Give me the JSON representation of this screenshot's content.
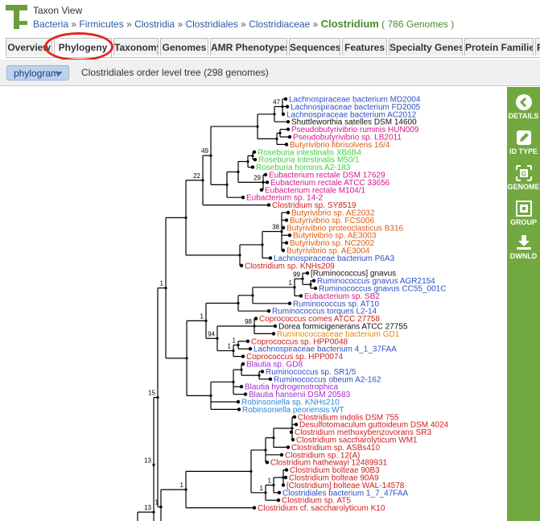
{
  "header": {
    "view_title": "Taxon View",
    "breadcrumb": [
      "Bacteria",
      "Firmicutes",
      "Clostridia",
      "Clostridiales",
      "Clostridiaceae"
    ],
    "current": "Clostridium",
    "genome_count": "( 786 Genomes )"
  },
  "tabs": [
    {
      "label": "Overview",
      "active": false
    },
    {
      "label": "Phylogeny",
      "active": true
    },
    {
      "label": "Taxonomy",
      "active": false
    },
    {
      "label": "Genomes",
      "active": false
    },
    {
      "label": "AMR Phenotypes",
      "active": false
    },
    {
      "label": "Sequences",
      "active": false
    },
    {
      "label": "Features",
      "active": false
    },
    {
      "label": "Specialty Genes",
      "active": false
    },
    {
      "label": "Protein Families",
      "active": false
    },
    {
      "label": "P",
      "active": false
    }
  ],
  "toolbar": {
    "view_select": "phylogram",
    "tree_title": "Clostridiales order level tree (298 genomes)"
  },
  "tree": {
    "leaves": [
      {
        "name": "Lachnospiraceae bacterium MD2004",
        "color": "#2f4fc4"
      },
      {
        "name": "Lachnospiraceae bacterium FD2005",
        "color": "#2f4fc4"
      },
      {
        "name": "Lachnospiraceae bacterium AC2012",
        "color": "#2f4fc4"
      },
      {
        "name": "Shuttleworthia satelles DSM 14600",
        "color": "#111111"
      },
      {
        "name": "Pseudobutyrivibrio ruminis HUN009",
        "color": "#d4168c"
      },
      {
        "name": "Pseudobutyrivibrio sp. LB2011",
        "color": "#d4168c"
      },
      {
        "name": "Butyrivibrio fibrisolvens 16/4",
        "color": "#e05a12"
      },
      {
        "name": "Roseburia intestinalis XB6B4",
        "color": "#3ecf3e"
      },
      {
        "name": "Roseburia intestinalis M50/1",
        "color": "#3ecf3e"
      },
      {
        "name": "Roseburia hominis A2-183",
        "color": "#3ecf3e"
      },
      {
        "name": "Eubacterium rectale DSM 17629",
        "color": "#d4168c"
      },
      {
        "name": "Eubacterium rectale ATCC 33656",
        "color": "#d4168c"
      },
      {
        "name": "Eubacterium rectale M104/1",
        "color": "#d4168c"
      },
      {
        "name": "Eubacterium sp. 14-2",
        "color": "#d4168c"
      },
      {
        "name": "Clostridium sp. SY8519",
        "color": "#d01c1c"
      },
      {
        "name": "Butyrivibrio sp. AE2032",
        "color": "#e05a12"
      },
      {
        "name": "Butyrivibrio sp. FCS006",
        "color": "#e05a12"
      },
      {
        "name": "Butyrivibrio proteoclasticus B316",
        "color": "#e05a12"
      },
      {
        "name": "Butyrivibrio sp. AE3003",
        "color": "#e05a12"
      },
      {
        "name": "Butyrivibrio sp. NC2002",
        "color": "#e05a12"
      },
      {
        "name": "Butyrivibrio sp. AE3004",
        "color": "#e05a12"
      },
      {
        "name": "Lachnospiraceae bacterium P6A3",
        "color": "#2f4fc4"
      },
      {
        "name": "Clostridium sp. KNHs209",
        "color": "#d01c1c"
      },
      {
        "name": "[Ruminococcus] gnavus",
        "color": "#111111"
      },
      {
        "name": "Ruminococcus gnavus AGR2154",
        "color": "#2f4fc4"
      },
      {
        "name": "Ruminococcus gnavus CC55_001C",
        "color": "#2f4fc4"
      },
      {
        "name": "Eubacterium sp. SB2",
        "color": "#d4168c"
      },
      {
        "name": "Ruminococcus sp. AT10",
        "color": "#2f4fc4"
      },
      {
        "name": "Ruminococcus torques L2-14",
        "color": "#2f4fc4"
      },
      {
        "name": "Coprococcus comes ATCC 27758",
        "color": "#d01c1c"
      },
      {
        "name": "Dorea formicigenerans ATCC 27755",
        "color": "#111111"
      },
      {
        "name": "Ruminococcaceae bacterium GD1",
        "color": "#e08a10"
      },
      {
        "name": "Coprococcus sp. HPP0048",
        "color": "#d01c1c"
      },
      {
        "name": "Lachnospiraceae bacterium 4_1_37FAA",
        "color": "#2f4fc4"
      },
      {
        "name": "Coprococcus sp. HPP0074",
        "color": "#d01c1c"
      },
      {
        "name": "Blautia sp. GD8",
        "color": "#a22ad0"
      },
      {
        "name": "Ruminococcus sp. SR1/5",
        "color": "#2f4fc4"
      },
      {
        "name": "Ruminococcus obeum A2-162",
        "color": "#2f4fc4"
      },
      {
        "name": "Blautia hydrogenotrophica",
        "color": "#a22ad0"
      },
      {
        "name": "Blautia hansenii DSM 20583",
        "color": "#a22ad0"
      },
      {
        "name": "Robinsoniella sp. KNHs210",
        "color": "#2a88d8"
      },
      {
        "name": "Robinsoniella peoriensis WT",
        "color": "#2a88d8"
      },
      {
        "name": "Clostridium indolis DSM 755",
        "color": "#d01c1c"
      },
      {
        "name": "Desulfotomaculum guttoideum DSM 4024",
        "color": "#d01c1c"
      },
      {
        "name": "Clostridium methoxybenzovorans SR3",
        "color": "#d01c1c"
      },
      {
        "name": "Clostridium saccharolyticum WM1",
        "color": "#d01c1c"
      },
      {
        "name": "Clostridium sp. ASBs410",
        "color": "#d01c1c"
      },
      {
        "name": "Clostridium sp. 12(A)",
        "color": "#d01c1c"
      },
      {
        "name": "Clostridium hathewayi 12489931",
        "color": "#d01c1c"
      },
      {
        "name": "Clostridium bolteae 90B3",
        "color": "#d01c1c"
      },
      {
        "name": "Clostridium bolteae 90A9",
        "color": "#d01c1c"
      },
      {
        "name": "[Clostridium] bolteae WAL-14578",
        "color": "#d01c1c"
      },
      {
        "name": "Clostridiales bacterium 1_7_47FAA",
        "color": "#2f4fc4"
      },
      {
        "name": "Clostridium sp. AT5",
        "color": "#d01c1c"
      },
      {
        "name": "Clostridium cf. saccharolyticum K10",
        "color": "#d01c1c"
      }
    ],
    "supports": [
      "47",
      "49",
      "29",
      "22",
      "38",
      "99",
      "1",
      "1",
      "1",
      "94",
      "1",
      "98",
      "1",
      "1",
      "1",
      "15",
      "1",
      "1",
      "1",
      "1",
      "13"
    ]
  },
  "sidebar": {
    "buttons": [
      {
        "label": "DETAILS",
        "icon": "arrow-left-circle-icon"
      },
      {
        "label": "ID TYPE",
        "icon": "edit-icon"
      },
      {
        "label": "GENOME",
        "icon": "genome-icon"
      },
      {
        "label": "GROUP",
        "icon": "group-icon"
      },
      {
        "label": "DWNLD",
        "icon": "download-icon"
      }
    ]
  }
}
